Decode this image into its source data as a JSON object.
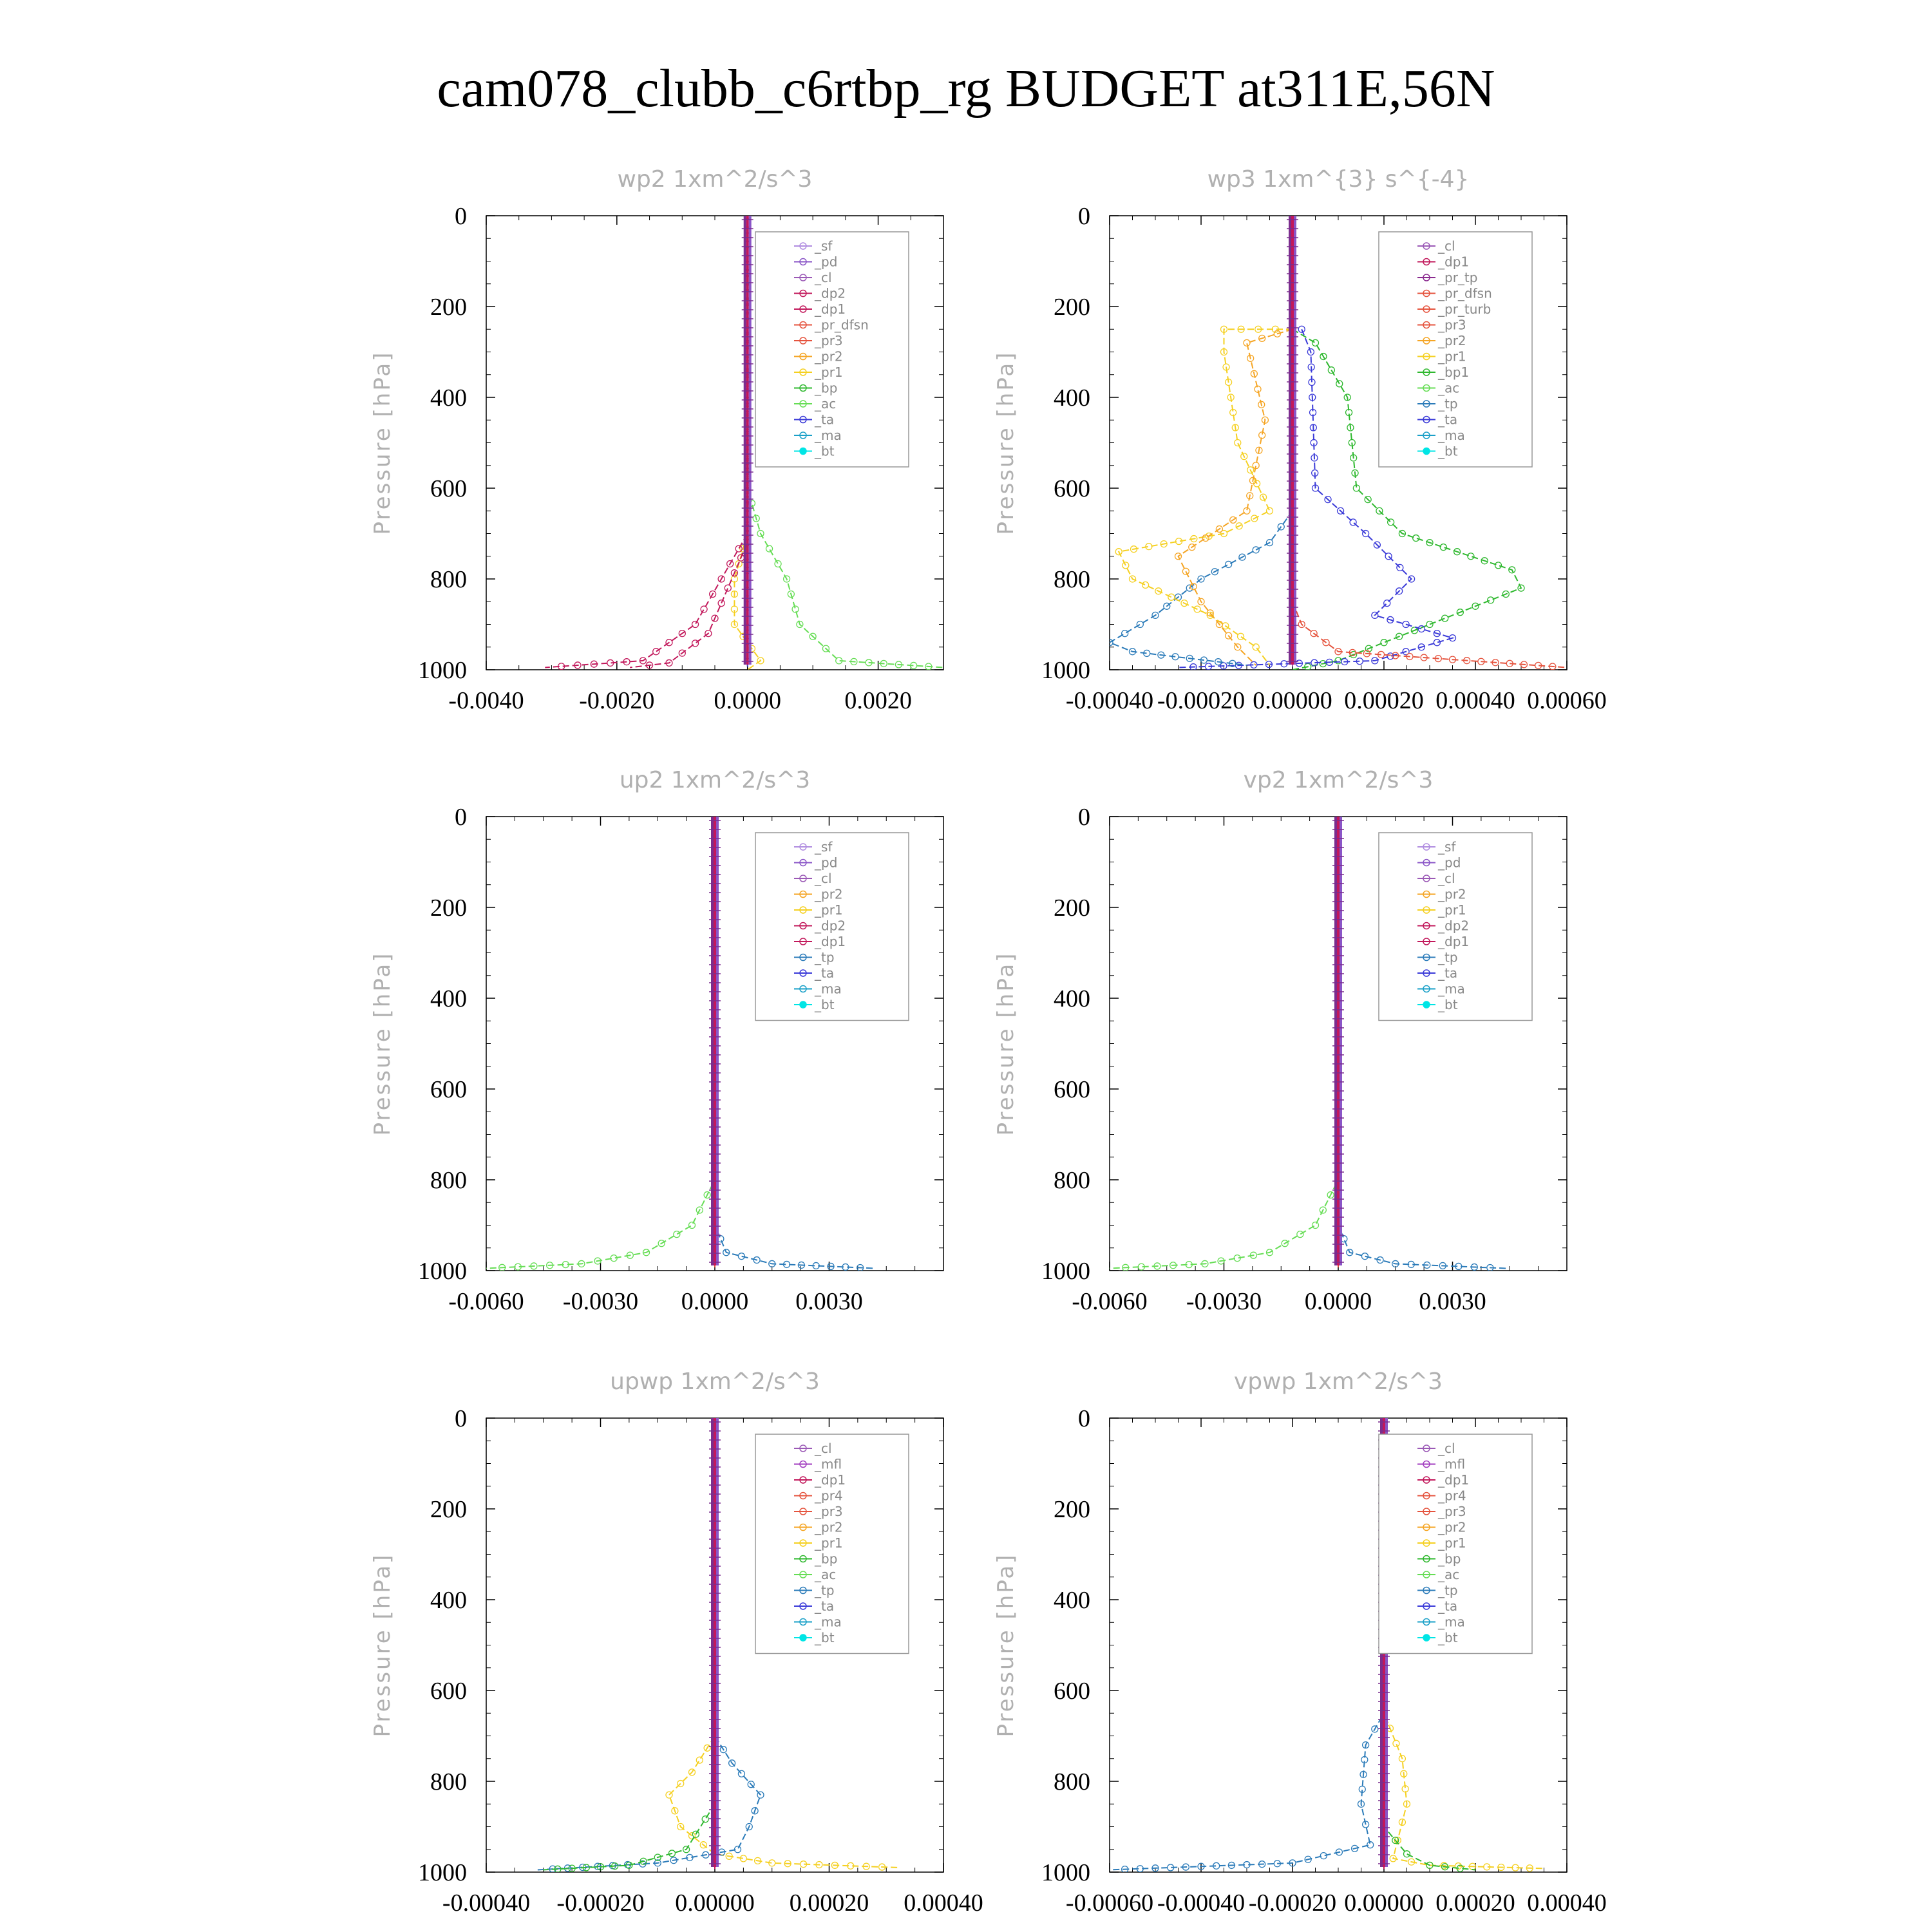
{
  "figure_title": "cam078_clubb_c6rtbp_rg  BUDGET at311E,56N",
  "colors": {
    "_sf": "#b08ce0",
    "_pd": "#8a55c7",
    "_cl": "#9b59b6",
    "_dp2": "#c2185b",
    "_dp1": "#c2185b",
    "_pr_dfsn": "#e5533d",
    "_pr_tp": "#8a2a8f",
    "_pr_turb": "#e5533d",
    "_pr3": "#e5533d",
    "_pr2": "#f5a524",
    "_pr1": "#f5d020",
    "_pr4": "#e5533d",
    "_bp": "#2eb82e",
    "_bp1": "#2eb82e",
    "_ac": "#66dd55",
    "_tp": "#2b7bb9",
    "_ta": "#3a3ad8",
    "_ma": "#1aa0c8",
    "_bt": "#00e5e5",
    "_mfl": "#a23cbf"
  },
  "chart_data": [
    {
      "type": "line",
      "title": "wp2   1xm^2/s^3",
      "ylabel": "Pressure [hPa]",
      "yticks": [
        "0",
        "200",
        "400",
        "600",
        "800",
        "1000"
      ],
      "xticks": [
        "-0.0040",
        "-0.0020",
        "0.0000",
        "0.0020"
      ],
      "xtick_values": [
        -0.004,
        -0.002,
        0,
        0.002
      ],
      "xlim": [
        -0.004,
        0.003
      ],
      "ylim": [
        1000,
        0
      ],
      "grid": false,
      "legend_placement": "top-right",
      "legend": [
        "_sf",
        "_pd",
        "_cl",
        "_dp2",
        "_dp1",
        "_pr_dfsn",
        "_pr3",
        "_pr2",
        "_pr1",
        "_bp",
        "_ac",
        "_ta",
        "_ma",
        "_bt"
      ],
      "series": [
        {
          "name": "_ac",
          "color": "#66dd55",
          "points": [
            [
              0,
              0
            ],
            [
              0,
              600
            ],
            [
              0.0002,
              700
            ],
            [
              0.0006,
              800
            ],
            [
              0.0008,
              900
            ],
            [
              0.0014,
              980
            ],
            [
              0.003,
              995
            ]
          ]
        },
        {
          "name": "_pr1",
          "color": "#f5d020",
          "points": [
            [
              0,
              0
            ],
            [
              0,
              700
            ],
            [
              -0.0002,
              800
            ],
            [
              -0.0002,
              900
            ],
            [
              0.0002,
              980
            ],
            [
              0,
              1000
            ]
          ]
        },
        {
          "name": "_dp2",
          "color": "#c2185b",
          "points": [
            [
              0,
              0
            ],
            [
              0,
              700
            ],
            [
              -0.0004,
              800
            ],
            [
              -0.0008,
              900
            ],
            [
              -0.0016,
              980
            ],
            [
              -0.0031,
              995
            ]
          ]
        },
        {
          "name": "_dp1",
          "color": "#c2185b",
          "points": [
            [
              0,
              0
            ],
            [
              0,
              720
            ],
            [
              -0.0003,
              820
            ],
            [
              -0.0006,
              920
            ],
            [
              -0.0012,
              985
            ],
            [
              -0.0018,
              995
            ]
          ]
        },
        {
          "name": "_ta",
          "color": "#3a3ad8",
          "points": [
            [
              0,
              0
            ],
            [
              0,
              1000
            ]
          ]
        }
      ]
    },
    {
      "type": "line",
      "title": "wp3   1xm^{3} s^{-4}",
      "ylabel": "Pressure [hPa]",
      "yticks": [
        "0",
        "200",
        "400",
        "600",
        "800",
        "1000"
      ],
      "xticks": [
        "-0.00040",
        "-0.00020",
        "0.00000",
        "0.00020",
        "0.00040",
        "0.00060"
      ],
      "xtick_values": [
        -0.0004,
        -0.0002,
        0,
        0.0002,
        0.0004,
        0.0006
      ],
      "xlim": [
        -0.0004,
        0.0006
      ],
      "ylim": [
        1000,
        0
      ],
      "grid": false,
      "legend_placement": "top-right",
      "legend": [
        "_cl",
        "_dp1",
        "_pr_tp",
        "_pr_dfsn",
        "_pr_turb",
        "_pr3",
        "_pr2",
        "_pr1",
        "_bp1",
        "_ac",
        "_tp",
        "_ta",
        "_ma",
        "_bt"
      ],
      "series": [
        {
          "name": "_bp1",
          "color": "#2eb82e",
          "points": [
            [
              0,
              250
            ],
            [
              5e-05,
              280
            ],
            [
              0.00012,
              400
            ],
            [
              0.00014,
              600
            ],
            [
              0.00024,
              700
            ],
            [
              0.00048,
              780
            ],
            [
              0.0005,
              820
            ],
            [
              0.0003,
              900
            ],
            [
              0.0001,
              980
            ],
            [
              0,
              1000
            ]
          ]
        },
        {
          "name": "_ta",
          "color": "#3a3ad8",
          "points": [
            [
              2e-05,
              250
            ],
            [
              4e-05,
              300
            ],
            [
              5e-05,
              600
            ],
            [
              0.00016,
              700
            ],
            [
              0.00026,
              800
            ],
            [
              0.00018,
              880
            ],
            [
              0.00035,
              930
            ],
            [
              0.00018,
              980
            ],
            [
              -0.00025,
              995
            ]
          ]
        },
        {
          "name": "_tp",
          "color": "#2b7bb9",
          "points": [
            [
              0,
              650
            ],
            [
              -5e-05,
              720
            ],
            [
              -0.0002,
              800
            ],
            [
              -0.0003,
              880
            ],
            [
              -0.0004,
              940
            ],
            [
              -0.00035,
              960
            ],
            [
              -0.0001,
              990
            ]
          ]
        },
        {
          "name": "_pr1",
          "color": "#f5d020",
          "points": [
            [
              0,
              250
            ],
            [
              -0.00015,
              250
            ],
            [
              -0.00015,
              300
            ],
            [
              -0.00012,
              500
            ],
            [
              -5e-05,
              650
            ],
            [
              -0.00015,
              700
            ],
            [
              -0.00038,
              740
            ],
            [
              -0.00035,
              800
            ],
            [
              -0.00018,
              880
            ],
            [
              -8e-05,
              950
            ],
            [
              -5e-05,
              990
            ]
          ]
        },
        {
          "name": "_pr2",
          "color": "#f5a524",
          "points": [
            [
              0,
              250
            ],
            [
              -0.0001,
              280
            ],
            [
              -6e-05,
              450
            ],
            [
              -0.0001,
              650
            ],
            [
              -0.00025,
              750
            ],
            [
              -0.0002,
              850
            ],
            [
              -0.00012,
              950
            ],
            [
              -8e-05,
              990
            ]
          ]
        },
        {
          "name": "_pr_dfsn",
          "color": "#e5533d",
          "points": [
            [
              0,
              0
            ],
            [
              0,
              850
            ],
            [
              2e-05,
              900
            ],
            [
              0.0001,
              960
            ],
            [
              0.0006,
              995
            ]
          ]
        },
        {
          "name": "_cl",
          "color": "#9b59b6",
          "points": [
            [
              0,
              0
            ],
            [
              0,
              1000
            ]
          ]
        }
      ]
    },
    {
      "type": "line",
      "title": "up2   1xm^2/s^3",
      "ylabel": "Pressure [hPa]",
      "yticks": [
        "0",
        "200",
        "400",
        "600",
        "800",
        "1000"
      ],
      "xticks": [
        "-0.0060",
        "-0.0030",
        "0.0000",
        "0.0030"
      ],
      "xtick_values": [
        -0.006,
        -0.003,
        0,
        0.003
      ],
      "xlim": [
        -0.006,
        0.006
      ],
      "ylim": [
        1000,
        0
      ],
      "grid": false,
      "legend_placement": "top-right",
      "legend": [
        "_sf",
        "_pd",
        "_cl",
        "_pr2",
        "_pr1",
        "_dp2",
        "_dp1",
        "_tp",
        "_ta",
        "_ma",
        "_bt"
      ],
      "series": [
        {
          "name": "_dp1",
          "color": "#66dd55",
          "points": [
            [
              0,
              0
            ],
            [
              0,
              800
            ],
            [
              -0.0006,
              900
            ],
            [
              -0.0018,
              960
            ],
            [
              -0.0035,
              985
            ],
            [
              -0.006,
              995
            ]
          ]
        },
        {
          "name": "_tp",
          "color": "#2b7bb9",
          "points": [
            [
              0,
              0
            ],
            [
              0,
              900
            ],
            [
              0.0003,
              960
            ],
            [
              0.0015,
              985
            ],
            [
              0.0042,
              995
            ]
          ]
        },
        {
          "name": "_pd",
          "color": "#e5533d",
          "points": [
            [
              0,
              0
            ],
            [
              0,
              1000
            ]
          ]
        }
      ]
    },
    {
      "type": "line",
      "title": "vp2   1xm^2/s^3",
      "ylabel": "Pressure [hPa]",
      "yticks": [
        "0",
        "200",
        "400",
        "600",
        "800",
        "1000"
      ],
      "xticks": [
        "-0.0060",
        "-0.0030",
        "0.0000",
        "0.0030"
      ],
      "xtick_values": [
        -0.006,
        -0.003,
        0,
        0.003
      ],
      "xlim": [
        -0.006,
        0.006
      ],
      "ylim": [
        1000,
        0
      ],
      "grid": false,
      "legend_placement": "top-right",
      "legend": [
        "_sf",
        "_pd",
        "_cl",
        "_pr2",
        "_pr1",
        "_dp2",
        "_dp1",
        "_tp",
        "_ta",
        "_ma",
        "_bt"
      ],
      "series": [
        {
          "name": "_dp1",
          "color": "#66dd55",
          "points": [
            [
              0,
              0
            ],
            [
              0,
              800
            ],
            [
              -0.0006,
              900
            ],
            [
              -0.0018,
              960
            ],
            [
              -0.0035,
              985
            ],
            [
              -0.006,
              995
            ]
          ]
        },
        {
          "name": "_tp",
          "color": "#2b7bb9",
          "points": [
            [
              0,
              0
            ],
            [
              0,
              900
            ],
            [
              0.0003,
              960
            ],
            [
              0.0015,
              985
            ],
            [
              0.0044,
              995
            ]
          ]
        },
        {
          "name": "_pd",
          "color": "#e5533d",
          "points": [
            [
              0,
              0
            ],
            [
              0,
              1000
            ]
          ]
        }
      ]
    },
    {
      "type": "line",
      "title": "upwp   1xm^2/s^3",
      "ylabel": "Pressure [hPa]",
      "yticks": [
        "0",
        "200",
        "400",
        "600",
        "800",
        "1000"
      ],
      "xticks": [
        "-0.00040",
        "-0.00020",
        "0.00000",
        "0.00020",
        "0.00040"
      ],
      "xtick_values": [
        -0.0004,
        -0.0002,
        0,
        0.0002,
        0.0004
      ],
      "xlim": [
        -0.0004,
        0.0004
      ],
      "ylim": [
        1000,
        0
      ],
      "grid": false,
      "legend_placement": "top-right",
      "legend": [
        "_cl",
        "_mfl",
        "_dp1",
        "_pr4",
        "_pr3",
        "_pr2",
        "_pr1",
        "_bp",
        "_ac",
        "_tp",
        "_ta",
        "_ma",
        "_bt"
      ],
      "series": [
        {
          "name": "_pr1",
          "color": "#f5d020",
          "points": [
            [
              0,
              0
            ],
            [
              0,
              700
            ],
            [
              -4e-05,
              780
            ],
            [
              -8e-05,
              830
            ],
            [
              -6e-05,
              900
            ],
            [
              0,
              960
            ],
            [
              0.0001,
              980
            ],
            [
              0.00032,
              990
            ]
          ]
        },
        {
          "name": "_tp",
          "color": "#2b7bb9",
          "points": [
            [
              0,
              0
            ],
            [
              0,
              700
            ],
            [
              3e-05,
              760
            ],
            [
              8e-05,
              830
            ],
            [
              6e-05,
              900
            ],
            [
              4e-05,
              950
            ],
            [
              -0.0001,
              980
            ],
            [
              -0.00031,
              995
            ]
          ]
        },
        {
          "name": "_bp",
          "color": "#2eb82e",
          "points": [
            [
              0,
              0
            ],
            [
              0,
              850
            ],
            [
              -5e-05,
              950
            ],
            [
              -0.00015,
              985
            ],
            [
              -0.0003,
              995
            ]
          ]
        },
        {
          "name": "_dp1",
          "color": "#c2185b",
          "points": [
            [
              0,
              0
            ],
            [
              0,
              1000
            ]
          ]
        }
      ]
    },
    {
      "type": "line",
      "title": "vpwp   1xm^2/s^3",
      "ylabel": "Pressure [hPa]",
      "yticks": [
        "0",
        "200",
        "400",
        "600",
        "800",
        "1000"
      ],
      "xticks": [
        "-0.00060",
        "-0.00040",
        "-0.00020",
        "0.00000",
        "0.00020",
        "0.00040"
      ],
      "xtick_values": [
        -0.0006,
        -0.0004,
        -0.0002,
        0,
        0.0002,
        0.0004
      ],
      "xlim": [
        -0.0006,
        0.0004
      ],
      "ylim": [
        1000,
        0
      ],
      "grid": false,
      "legend_placement": "top-right",
      "legend": [
        "_cl",
        "_mfl",
        "_dp1",
        "_pr4",
        "_pr3",
        "_pr2",
        "_pr1",
        "_bp",
        "_ac",
        "_tp",
        "_ta",
        "_ma",
        "_bt"
      ],
      "series": [
        {
          "name": "_pr1",
          "color": "#f5d020",
          "points": [
            [
              0,
              0
            ],
            [
              0,
              650
            ],
            [
              4e-05,
              750
            ],
            [
              5e-05,
              850
            ],
            [
              3e-05,
              930
            ],
            [
              2e-05,
              970
            ],
            [
              0.0001,
              985
            ],
            [
              0.00035,
              992
            ]
          ]
        },
        {
          "name": "_tp",
          "color": "#2b7bb9",
          "points": [
            [
              0,
              0
            ],
            [
              0,
              650
            ],
            [
              -4e-05,
              720
            ],
            [
              -5e-05,
              850
            ],
            [
              -3e-05,
              940
            ],
            [
              -0.0002,
              980
            ],
            [
              -0.0006,
              995
            ]
          ]
        },
        {
          "name": "_bp",
          "color": "#2eb82e",
          "points": [
            [
              0,
              0
            ],
            [
              0,
              900
            ],
            [
              5e-05,
              960
            ],
            [
              0.0001,
              985
            ],
            [
              0.0002,
              995
            ]
          ]
        },
        {
          "name": "_dp1",
          "color": "#c2185b",
          "points": [
            [
              0,
              0
            ],
            [
              0,
              1000
            ]
          ]
        }
      ]
    }
  ]
}
